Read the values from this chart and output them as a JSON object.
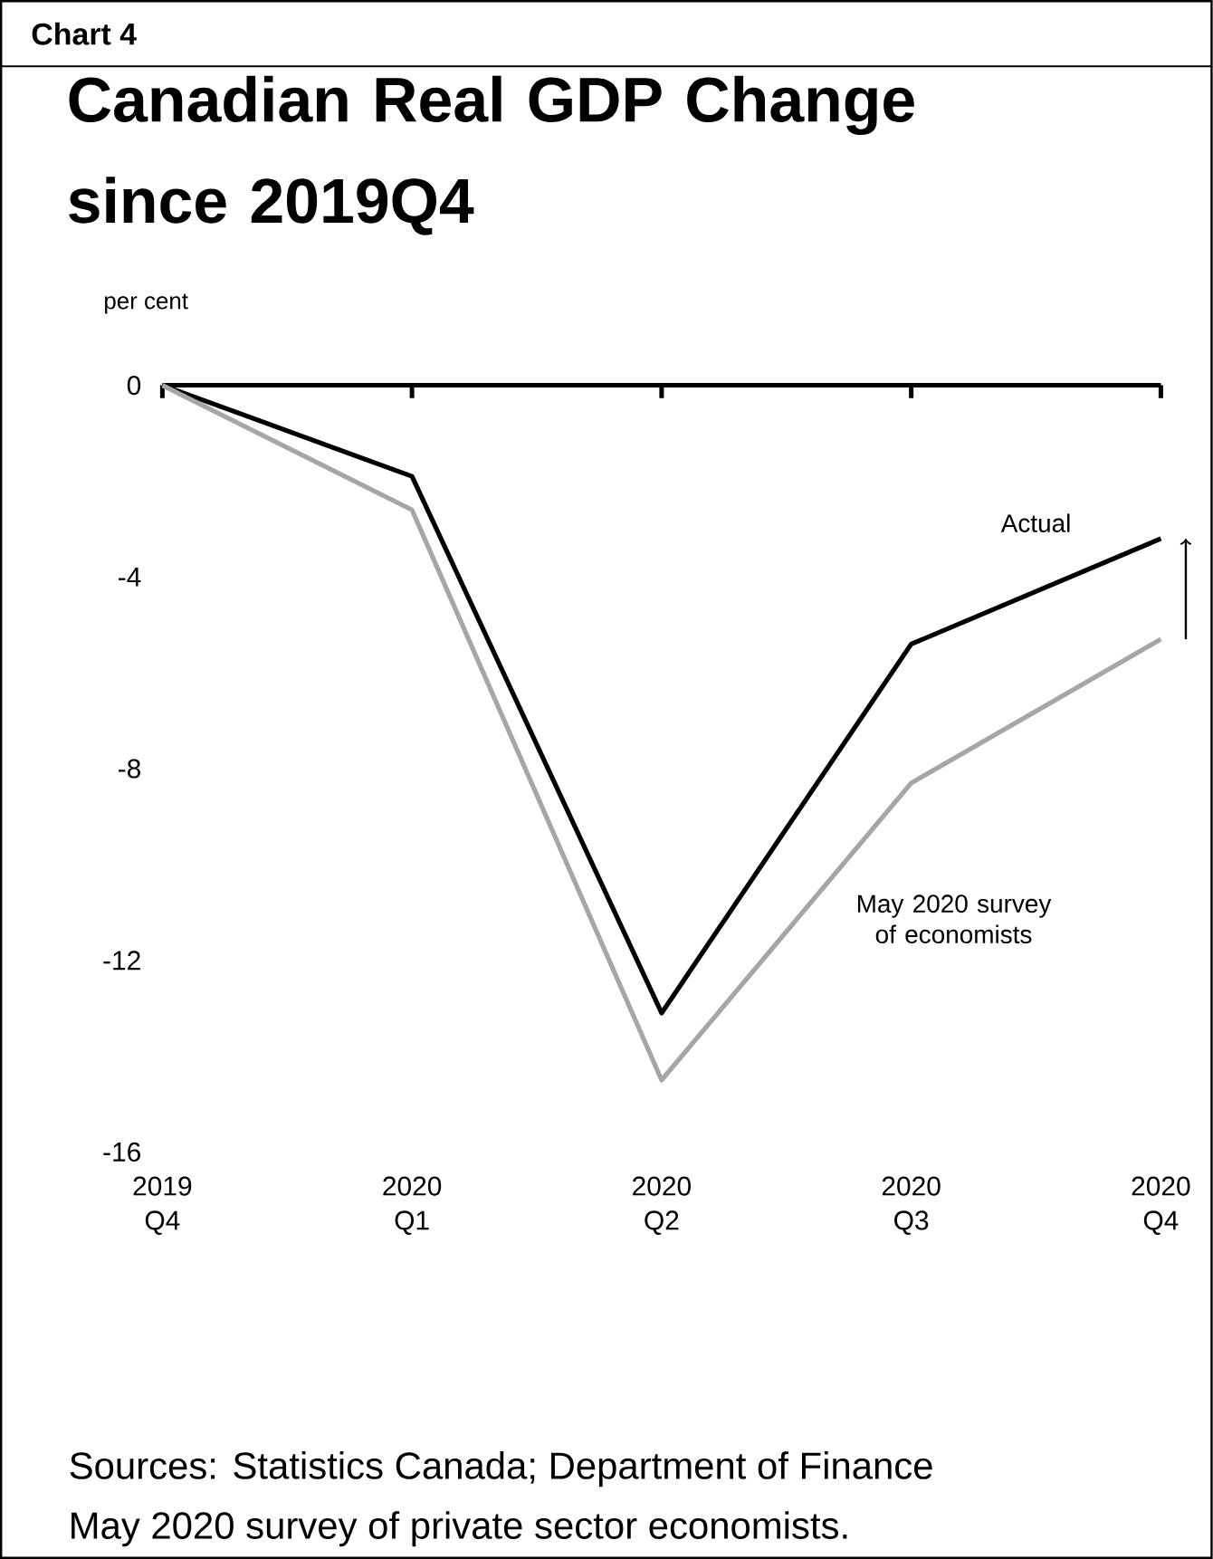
{
  "chart_data": {
    "type": "line",
    "title": "Canadian Real GDP Change since 2019Q4",
    "ylabel": "per cent",
    "categories": [
      "2019 Q4",
      "2020 Q1",
      "2020 Q2",
      "2020 Q3",
      "2020 Q4"
    ],
    "series": [
      {
        "name": "Actual",
        "color": "#000000",
        "values": [
          0,
          -1.9,
          -13.1,
          -5.4,
          -3.2
        ]
      },
      {
        "name": "May 2020 survey of economists",
        "color": "#a6a6a6",
        "values": [
          0,
          -2.6,
          -14.5,
          -8.3,
          -5.3
        ]
      }
    ],
    "ylim": [
      -16,
      0
    ],
    "yticks": [
      0,
      -4,
      -8,
      -12,
      -16
    ],
    "line_style": "solid",
    "annotations": [
      "Chart 4",
      "Sources: Statistics Canada; Department of Finance",
      "May 2020 survey of private sector economists."
    ]
  }
}
